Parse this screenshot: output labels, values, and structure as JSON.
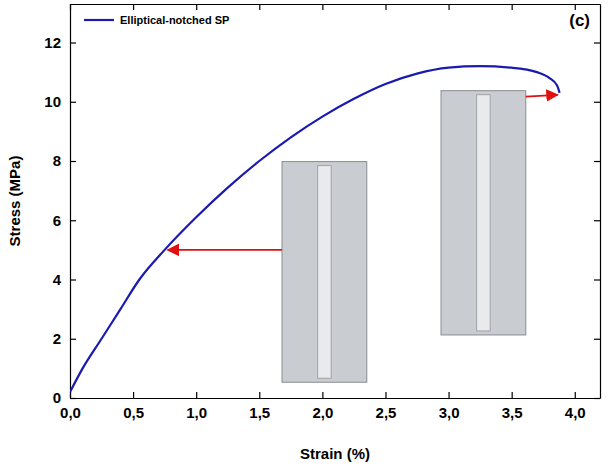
{
  "chart_data": {
    "type": "line",
    "x_label": "Strain (%)",
    "y_label": "Stress (MPa)",
    "annotations": [
      "(c)"
    ],
    "legend": "upper left",
    "grid": false,
    "xlim": [
      0,
      4.2
    ],
    "ylim": [
      0,
      13.3
    ],
    "xticks": [
      {
        "value": 0,
        "label": "0,0"
      },
      {
        "value": 0.5,
        "label": "0,5"
      },
      {
        "value": 1,
        "label": "1,0"
      },
      {
        "value": 1.5,
        "label": "1,5"
      },
      {
        "value": 2,
        "label": "2,0"
      },
      {
        "value": 2.5,
        "label": "2,5"
      },
      {
        "value": 3,
        "label": "3,0"
      },
      {
        "value": 3.5,
        "label": "3,5"
      },
      {
        "value": 4,
        "label": "4,0"
      }
    ],
    "yticks": [
      0,
      2,
      4,
      6,
      8,
      10,
      12
    ],
    "x": [
      0,
      0.1,
      0.25,
      0.4,
      0.55,
      0.75,
      1.0,
      1.25,
      1.5,
      1.75,
      2.0,
      2.25,
      2.5,
      2.75,
      3.0,
      3.25,
      3.5,
      3.7,
      3.8,
      3.86,
      3.88
    ],
    "series": [
      {
        "name": "Elliptical-notched SP",
        "color": "#1a1ab0",
        "values": [
          0.2,
          1.0,
          2.0,
          3.0,
          4.0,
          5.0,
          6.1,
          7.1,
          8.0,
          8.8,
          9.5,
          10.1,
          10.6,
          10.95,
          11.15,
          11.2,
          11.15,
          11.0,
          10.8,
          10.55,
          10.3
        ]
      }
    ]
  }
}
